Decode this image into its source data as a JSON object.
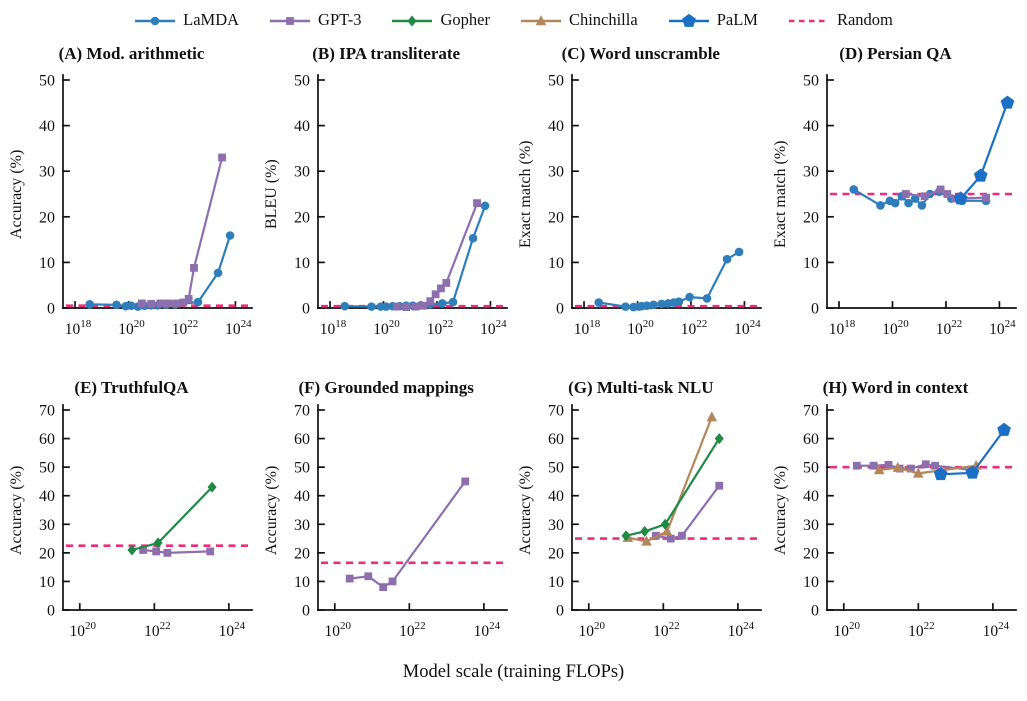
{
  "figure": {
    "xlabel": "Model scale (training FLOPs)",
    "axis_color": "#111111",
    "legend": [
      {
        "name": "LaMDA",
        "marker": "circle",
        "color": "#2e7ebc",
        "line": "solid"
      },
      {
        "name": "GPT-3",
        "marker": "square",
        "color": "#8e6fae",
        "line": "solid"
      },
      {
        "name": "Gopher",
        "marker": "diamond",
        "color": "#1f8a44",
        "line": "solid"
      },
      {
        "name": "Chinchilla",
        "marker": "triangle",
        "color": "#b3875a",
        "line": "solid"
      },
      {
        "name": "PaLM",
        "marker": "pentagon",
        "color": "#1b6fc4",
        "line": "solid"
      },
      {
        "name": "Random",
        "marker": "none",
        "color": "#ee2d7a",
        "line": "dashed"
      }
    ]
  },
  "chart_data": [
    {
      "type": "line",
      "title": "(A) Mod. arithmetic",
      "ylabel": "Accuracy (%)",
      "ylim": [
        0,
        50
      ],
      "yticks": [
        0,
        10,
        20,
        30,
        40,
        50
      ],
      "xlim_log10": [
        17.55,
        24.62
      ],
      "xticks_log10": [
        18,
        20,
        22,
        24
      ],
      "random_baseline": 0.5,
      "series": [
        {
          "name": "LaMDA",
          "x_log10": [
            18.55,
            19.55,
            19.9,
            20.1,
            20.35,
            20.6,
            20.85,
            21.1,
            21.4,
            21.75,
            22.6,
            23.35,
            23.8
          ],
          "y": [
            0.8,
            0.7,
            0.4,
            0.5,
            0.3,
            0.5,
            0.6,
            0.6,
            0.7,
            0.8,
            1.3,
            7.7,
            15.9
          ]
        },
        {
          "name": "GPT-3",
          "x_log10": [
            20.5,
            20.85,
            21.2,
            21.5,
            21.8,
            22.05,
            22.25,
            22.45,
            23.5
          ],
          "y": [
            1.0,
            0.9,
            1.0,
            1.0,
            1.0,
            1.2,
            2.0,
            8.8,
            33.0
          ]
        }
      ]
    },
    {
      "type": "line",
      "title": "(B) IPA transliterate",
      "ylabel": "BLEU (%)",
      "ylim": [
        0,
        50
      ],
      "yticks": [
        0,
        10,
        20,
        30,
        40,
        50
      ],
      "xlim_log10": [
        17.55,
        24.62
      ],
      "xticks_log10": [
        18,
        20,
        22,
        24
      ],
      "random_baseline": 0.4,
      "series": [
        {
          "name": "LaMDA",
          "x_log10": [
            18.55,
            19.55,
            19.9,
            20.1,
            20.35,
            20.6,
            20.85,
            21.1,
            21.4,
            21.75,
            22.2,
            22.6,
            23.35,
            23.8
          ],
          "y": [
            0.4,
            0.3,
            0.3,
            0.3,
            0.4,
            0.4,
            0.5,
            0.5,
            0.6,
            0.8,
            1.0,
            1.3,
            15.3,
            22.4
          ]
        },
        {
          "name": "GPT-3",
          "x_log10": [
            20.5,
            20.85,
            21.2,
            21.5,
            21.75,
            21.95,
            22.15,
            22.35,
            23.5
          ],
          "y": [
            0.3,
            0.2,
            0.3,
            0.5,
            1.5,
            3.0,
            4.3,
            5.5,
            23.0
          ]
        }
      ]
    },
    {
      "type": "line",
      "title": "(C) Word unscramble",
      "ylabel": "Exact match (%)",
      "ylim": [
        0,
        50
      ],
      "yticks": [
        0,
        10,
        20,
        30,
        40,
        50
      ],
      "xlim_log10": [
        17.55,
        24.62
      ],
      "xticks_log10": [
        18,
        20,
        22,
        24
      ],
      "random_baseline": 0.4,
      "series": [
        {
          "name": "LaMDA",
          "x_log10": [
            18.55,
            19.55,
            19.85,
            20.05,
            20.15,
            20.35,
            20.6,
            20.9,
            21.15,
            21.35,
            21.55,
            21.95,
            22.6,
            23.35,
            23.8
          ],
          "y": [
            1.2,
            0.3,
            0.2,
            0.3,
            0.4,
            0.5,
            0.7,
            0.9,
            1.0,
            1.2,
            1.4,
            2.4,
            2.1,
            10.7,
            12.3
          ]
        }
      ]
    },
    {
      "type": "line",
      "title": "(D) Persian QA",
      "ylabel": "Exact match (%)",
      "ylim": [
        0,
        50
      ],
      "yticks": [
        0,
        10,
        20,
        30,
        40,
        50
      ],
      "xlim_log10": [
        17.55,
        24.62
      ],
      "xticks_log10": [
        18,
        20,
        22,
        24
      ],
      "random_baseline": 25,
      "series": [
        {
          "name": "LaMDA",
          "x_log10": [
            18.55,
            19.55,
            19.9,
            20.1,
            20.35,
            20.6,
            20.85,
            21.1,
            21.4,
            21.75,
            22.2,
            22.6,
            23.5
          ],
          "y": [
            26.0,
            22.5,
            23.5,
            23.0,
            24.5,
            23.0,
            24.0,
            22.5,
            25.0,
            25.5,
            24.0,
            23.5,
            23.5
          ]
        },
        {
          "name": "GPT-3",
          "x_log10": [
            20.5,
            21.2,
            21.8,
            22.05,
            22.35,
            23.5
          ],
          "y": [
            25.0,
            24.5,
            26.0,
            25.0,
            24.0,
            24.2
          ]
        },
        {
          "name": "PaLM",
          "x_log10": [
            22.55,
            23.3,
            24.3
          ],
          "y": [
            24.0,
            29.0,
            45.0
          ]
        }
      ]
    },
    {
      "type": "line",
      "title": "(E) TruthfulQA",
      "ylabel": "Accuracy (%)",
      "ylim": [
        0,
        70
      ],
      "yticks": [
        0,
        10,
        20,
        30,
        40,
        50,
        60,
        70
      ],
      "xlim_log10": [
        19.55,
        24.62
      ],
      "xticks_log10": [
        20,
        22,
        24
      ],
      "random_baseline": 22.5,
      "series": [
        {
          "name": "GPT-3",
          "x_log10": [
            21.7,
            22.05,
            22.35,
            23.5
          ],
          "y": [
            21.0,
            20.5,
            20.0,
            20.5
          ]
        },
        {
          "name": "Gopher",
          "x_log10": [
            21.4,
            22.1,
            23.55
          ],
          "y": [
            21.0,
            23.5,
            43.0
          ]
        }
      ]
    },
    {
      "type": "line",
      "title": "(F) Grounded mappings",
      "ylabel": "Accuracy (%)",
      "ylim": [
        0,
        70
      ],
      "yticks": [
        0,
        10,
        20,
        30,
        40,
        50,
        60,
        70
      ],
      "xlim_log10": [
        19.55,
        24.62
      ],
      "xticks_log10": [
        20,
        22,
        24
      ],
      "random_baseline": 16.5,
      "series": [
        {
          "name": "GPT-3",
          "x_log10": [
            20.4,
            20.9,
            21.3,
            21.55,
            23.5
          ],
          "y": [
            11.0,
            11.8,
            8.0,
            10.0,
            45.0
          ]
        }
      ]
    },
    {
      "type": "line",
      "title": "(G) Multi-task NLU",
      "ylabel": "Accuracy (%)",
      "ylim": [
        0,
        70
      ],
      "yticks": [
        0,
        10,
        20,
        30,
        40,
        50,
        60,
        70
      ],
      "xlim_log10": [
        19.55,
        24.62
      ],
      "xticks_log10": [
        20,
        22,
        24
      ],
      "random_baseline": 25,
      "series": [
        {
          "name": "GPT-3",
          "x_log10": [
            21.8,
            22.2,
            22.5,
            23.5
          ],
          "y": [
            26.0,
            25.0,
            26.0,
            43.5
          ]
        },
        {
          "name": "Chinchilla",
          "x_log10": [
            21.05,
            21.55,
            22.1,
            23.3
          ],
          "y": [
            25.3,
            24.0,
            27.5,
            67.5
          ]
        },
        {
          "name": "Gopher",
          "x_log10": [
            21.0,
            21.5,
            22.05,
            23.5
          ],
          "y": [
            26.0,
            27.5,
            30.0,
            60.0
          ]
        }
      ]
    },
    {
      "type": "line",
      "title": "(H) Word in context",
      "ylabel": "Accuracy (%)",
      "ylim": [
        0,
        70
      ],
      "yticks": [
        0,
        10,
        20,
        30,
        40,
        50,
        60,
        70
      ],
      "xlim_log10": [
        19.55,
        24.62
      ],
      "xticks_log10": [
        20,
        22,
        24
      ],
      "random_baseline": 50,
      "series": [
        {
          "name": "GPT-3",
          "x_log10": [
            20.35,
            20.8,
            21.2,
            21.5,
            21.8,
            22.2,
            22.45,
            23.45
          ],
          "y": [
            50.5,
            50.5,
            50.8,
            49.5,
            49.5,
            51.0,
            50.5,
            49.0
          ]
        },
        {
          "name": "Chinchilla",
          "x_log10": [
            20.95,
            21.45,
            22.0,
            23.55
          ],
          "y": [
            49.0,
            49.8,
            47.8,
            50.5
          ]
        },
        {
          "name": "PaLM",
          "x_log10": [
            22.6,
            23.45,
            24.3
          ],
          "y": [
            47.5,
            48.0,
            63.0
          ]
        }
      ]
    }
  ]
}
